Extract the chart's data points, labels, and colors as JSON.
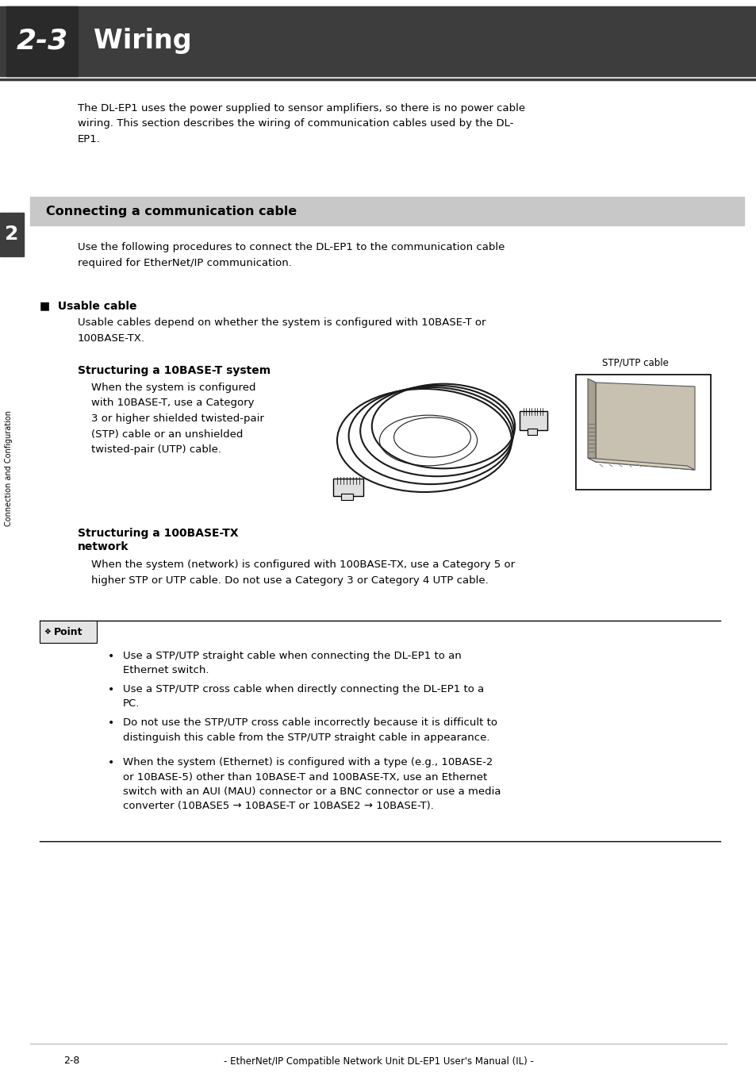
{
  "bg_color": "#ffffff",
  "header_bg": "#3d3d3d",
  "header_number": "2-3",
  "header_title": "Wiring",
  "section_bg": "#c8c8c8",
  "section_title": "Connecting a communication cable",
  "chapter_number": "2",
  "sidebar_text": "Connection and Configuration",
  "intro_text": "The DL-EP1 uses the power supplied to sensor amplifiers, so there is no power cable\nwiring. This section describes the wiring of communication cables used by the DL-\nEP1.",
  "use_text": "Use the following procedures to connect the DL-EP1 to the communication cable\nrequired for EtherNet/IP communication.",
  "usable_cable_title": "■  Usable cable",
  "usable_cable_text": "Usable cables depend on whether the system is configured with 10BASE-T or\n100BASE-TX.",
  "s10base_title": "Structuring a 10BASE-T system",
  "s10base_text": "When the system is configured\nwith 10BASE-T, use a Category\n3 or higher shielded twisted-pair\n(STP) cable or an unshielded\ntwisted-pair (UTP) cable.",
  "stp_label": "STP/UTP cable",
  "s100base_title": "Structuring a 100BASE-TX\nnetwork",
  "s100base_text": "When the system (network) is configured with 100BASE-TX, use a Category 5 or\nhigher STP or UTP cable. Do not use a Category 3 or Category 4 UTP cable.",
  "point_label": "Point",
  "point_bullets": [
    "Use a STP/UTP straight cable when connecting the DL-EP1 to an\nEthernet switch.",
    "Use a STP/UTP cross cable when directly connecting the DL-EP1 to a\nPC.",
    "Do not use the STP/UTP cross cable incorrectly because it is difficult to\ndistinguish this cable from the STP/UTP straight cable in appearance.",
    "When the system (Ethernet) is configured with a type (e.g., 10BASE-2\nor 10BASE-5) other than 10BASE-T and 100BASE-TX, use an Ethernet\nswitch with an AUI (MAU) connector or a BNC connector or use a media\nconverter (10BASE5 → 10BASE-T or 10BASE2 → 10BASE-T)."
  ],
  "footer_text": "2-8",
  "footer_center": "- EtherNet/IP Compatible Network Unit DL-EP1 User's Manual (IL) -"
}
